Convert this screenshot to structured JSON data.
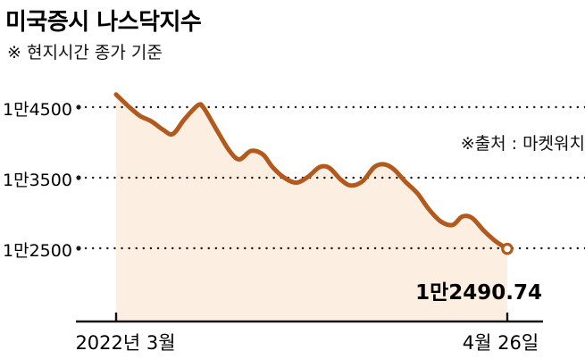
{
  "header": {
    "title": "미국증시 나스닥지수",
    "subtitle": "※ 현지시간 종가 기준"
  },
  "annotations": {
    "source": "※출처 : 마켓워치",
    "last_value_label": "1만2490.74"
  },
  "x_axis": {
    "start_label": "2022년 3월",
    "end_label": "4월 26일"
  },
  "colors": {
    "line": "#b25a1d",
    "area": "#fcefe2",
    "grid": "#1a1a1a",
    "axis": "#111111",
    "marker_fill": "#ffffff"
  },
  "chart_data": {
    "type": "line",
    "title": "미국증시 나스닥지수",
    "subtitle": "현지시간 종가 기준",
    "source": "마켓워치",
    "xlabel": "",
    "ylabel": "나스닥지수",
    "x_range": [
      "2022년 3월",
      "4월 26일"
    ],
    "ylim": [
      12200,
      14800
    ],
    "grid": "dotted-horizontal",
    "legend": "none",
    "last_value": 12490.74,
    "yticks": [
      {
        "value": 14500,
        "label": "1만4500"
      },
      {
        "value": 13500,
        "label": "1만3500"
      },
      {
        "value": 12500,
        "label": "1만2500"
      }
    ],
    "series": [
      {
        "name": "나스닥지수",
        "points": [
          [
            0.0,
            14680
          ],
          [
            0.03,
            14520
          ],
          [
            0.06,
            14380
          ],
          [
            0.09,
            14300
          ],
          [
            0.12,
            14180
          ],
          [
            0.145,
            14120
          ],
          [
            0.175,
            14330
          ],
          [
            0.21,
            14530
          ],
          [
            0.225,
            14480
          ],
          [
            0.26,
            14150
          ],
          [
            0.29,
            13880
          ],
          [
            0.315,
            13760
          ],
          [
            0.345,
            13880
          ],
          [
            0.375,
            13830
          ],
          [
            0.4,
            13650
          ],
          [
            0.43,
            13500
          ],
          [
            0.46,
            13430
          ],
          [
            0.49,
            13510
          ],
          [
            0.52,
            13650
          ],
          [
            0.545,
            13640
          ],
          [
            0.575,
            13470
          ],
          [
            0.6,
            13390
          ],
          [
            0.63,
            13450
          ],
          [
            0.66,
            13650
          ],
          [
            0.685,
            13690
          ],
          [
            0.71,
            13620
          ],
          [
            0.74,
            13440
          ],
          [
            0.77,
            13280
          ],
          [
            0.8,
            13050
          ],
          [
            0.83,
            12880
          ],
          [
            0.86,
            12830
          ],
          [
            0.885,
            12950
          ],
          [
            0.91,
            12930
          ],
          [
            0.94,
            12750
          ],
          [
            0.97,
            12600
          ],
          [
            1.0,
            12490.74
          ]
        ]
      }
    ]
  }
}
